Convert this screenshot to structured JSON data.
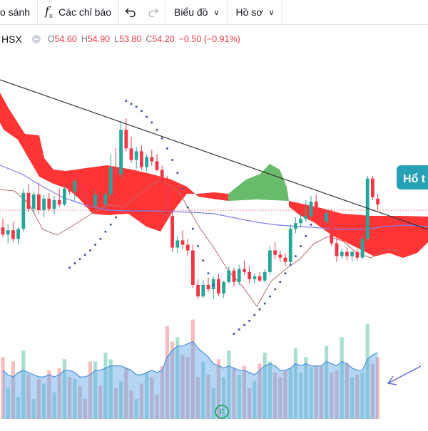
{
  "toolbar": {
    "compare_label": "o sánh",
    "indicators_label": "Các chỉ báo",
    "chart_menu_label": "Biểu đồ",
    "profile_menu_label": "Hồ sơ"
  },
  "legend": {
    "symbol": "HSX",
    "open_label": "O",
    "open": "54.60",
    "high_label": "H",
    "high": "54.90",
    "low_label": "L",
    "low": "53.80",
    "close_label": "C",
    "close": "54.20",
    "change": "−0.50 (−0.91%)"
  },
  "annotation": {
    "label": "Hổ t"
  },
  "marker": {
    "label": "F"
  },
  "colors": {
    "up": "#26a69a",
    "down": "#f23645",
    "cloud_bear": "#ff2a2a",
    "cloud_bull": "#4caf50",
    "psar": "#3f51b5",
    "ma": "#7e7ef0",
    "kijun": "#b86a6a",
    "trend": "#333333"
  },
  "chart_data": {
    "type": "candlestick",
    "price_line": 53.8,
    "candles": [
      [
        52.6,
        53.2,
        51.9,
        52.1
      ],
      [
        52.1,
        52.8,
        51.5,
        52.4
      ],
      [
        52.4,
        53.0,
        51.6,
        51.8
      ],
      [
        51.8,
        52.6,
        51.4,
        52.5
      ],
      [
        52.5,
        55.3,
        52.3,
        55.0
      ],
      [
        55.0,
        55.6,
        53.7,
        53.9
      ],
      [
        53.9,
        55.1,
        53.6,
        54.9
      ],
      [
        54.9,
        55.7,
        53.6,
        53.8
      ],
      [
        53.8,
        54.9,
        53.3,
        54.6
      ],
      [
        54.6,
        55.0,
        53.7,
        53.9
      ],
      [
        53.9,
        54.8,
        53.5,
        54.5
      ],
      [
        54.5,
        55.3,
        54.0,
        54.2
      ],
      [
        54.2,
        55.5,
        54.1,
        55.3
      ],
      [
        55.3,
        56.5,
        54.9,
        55.1
      ],
      [
        55.1,
        56.0,
        54.4,
        55.8
      ],
      [
        55.8,
        56.4,
        55.1,
        55.4
      ],
      [
        55.4,
        55.9,
        54.0,
        54.3
      ],
      [
        54.3,
        54.7,
        53.7,
        54.1
      ],
      [
        54.1,
        55.2,
        53.9,
        54.9
      ],
      [
        54.9,
        55.3,
        54.0,
        54.2
      ],
      [
        54.2,
        55.1,
        53.8,
        54.9
      ],
      [
        54.9,
        57.7,
        54.7,
        56.8
      ],
      [
        56.8,
        58.1,
        56.1,
        56.3
      ],
      [
        56.3,
        60.0,
        56.0,
        59.4
      ],
      [
        59.4,
        60.2,
        57.9,
        58.1
      ],
      [
        58.1,
        58.9,
        57.1,
        57.3
      ],
      [
        57.3,
        58.2,
        56.7,
        57.9
      ],
      [
        57.9,
        58.3,
        56.6,
        56.8
      ],
      [
        56.8,
        57.7,
        56.5,
        57.5
      ],
      [
        57.5,
        58.0,
        56.9,
        57.2
      ],
      [
        57.2,
        57.7,
        56.5,
        56.6
      ],
      [
        56.6,
        56.9,
        55.4,
        55.6
      ],
      [
        55.6,
        56.2,
        53.1,
        53.4
      ],
      [
        53.4,
        53.9,
        50.9,
        51.2
      ],
      [
        51.2,
        52.0,
        50.8,
        51.7
      ],
      [
        51.7,
        52.4,
        51.1,
        51.4
      ],
      [
        51.4,
        51.8,
        50.6,
        51.0
      ],
      [
        51.0,
        51.4,
        48.4,
        48.6
      ],
      [
        48.6,
        49.0,
        47.6,
        47.8
      ],
      [
        47.8,
        48.9,
        47.7,
        48.6
      ],
      [
        48.6,
        49.1,
        48.1,
        48.3
      ],
      [
        48.3,
        49.2,
        47.6,
        49.0
      ],
      [
        49.0,
        49.4,
        47.8,
        48.0
      ],
      [
        48.0,
        48.9,
        47.7,
        48.8
      ],
      [
        48.8,
        49.9,
        48.7,
        49.6
      ],
      [
        49.6,
        49.8,
        48.5,
        48.8
      ],
      [
        48.8,
        50.0,
        48.6,
        49.7
      ],
      [
        49.7,
        50.3,
        49.3,
        49.5
      ],
      [
        49.5,
        49.9,
        48.7,
        49.0
      ],
      [
        49.0,
        49.4,
        48.7,
        49.2
      ],
      [
        49.2,
        49.5,
        48.8,
        48.9
      ],
      [
        48.9,
        49.7,
        48.8,
        49.5
      ],
      [
        49.5,
        51.3,
        49.3,
        51.0
      ],
      [
        51.0,
        51.6,
        50.4,
        50.7
      ],
      [
        50.7,
        51.0,
        50.2,
        50.5
      ],
      [
        50.5,
        50.8,
        49.9,
        50.2
      ],
      [
        50.2,
        52.8,
        50.0,
        52.5
      ],
      [
        52.5,
        53.3,
        52.2,
        52.9
      ],
      [
        52.9,
        53.6,
        52.6,
        53.2
      ],
      [
        53.2,
        54.5,
        53.0,
        53.4
      ],
      [
        53.4,
        54.8,
        53.2,
        54.4
      ],
      [
        54.4,
        54.9,
        53.2,
        53.5
      ],
      [
        53.5,
        53.9,
        52.7,
        53.0
      ],
      [
        53.0,
        53.8,
        52.8,
        53.6
      ],
      [
        53.6,
        53.9,
        51.3,
        51.5
      ],
      [
        51.5,
        51.9,
        50.2,
        50.6
      ],
      [
        50.6,
        51.1,
        50.4,
        50.9
      ],
      [
        50.9,
        51.2,
        50.3,
        50.6
      ],
      [
        50.6,
        51.0,
        50.2,
        50.9
      ],
      [
        50.9,
        51.1,
        50.3,
        50.5
      ],
      [
        50.5,
        52.1,
        50.4,
        51.8
      ],
      [
        51.8,
        56.2,
        51.6,
        56.0
      ],
      [
        56.0,
        56.2,
        54.5,
        54.7
      ],
      [
        54.6,
        54.9,
        53.8,
        54.2
      ]
    ],
    "volume": [
      28,
      14,
      26,
      10,
      31,
      20,
      9,
      18,
      16,
      22,
      12,
      23,
      27,
      19,
      18,
      15,
      9,
      26,
      26,
      15,
      30,
      27,
      14,
      17,
      23,
      13,
      9,
      16,
      21,
      19,
      11,
      24,
      42,
      35,
      37,
      29,
      28,
      45,
      19,
      26,
      20,
      14,
      27,
      19,
      31,
      23,
      20,
      24,
      14,
      17,
      25,
      30,
      26,
      21,
      19,
      22,
      23,
      32,
      21,
      28,
      23,
      24,
      24,
      33,
      21,
      22,
      37,
      25,
      19,
      20,
      21,
      43,
      25,
      28
    ],
    "volume_ma": [
      22,
      20,
      19,
      21,
      22,
      21,
      20,
      19,
      19,
      20,
      19,
      20,
      22,
      22,
      21,
      19,
      19,
      20,
      22,
      22,
      23,
      24,
      24,
      24,
      23,
      22,
      20,
      20,
      21,
      22,
      21,
      22,
      28,
      31,
      33,
      33,
      34,
      35,
      32,
      30,
      28,
      25,
      24,
      23,
      24,
      23,
      22,
      22,
      21,
      20,
      22,
      24,
      25,
      24,
      22,
      22,
      23,
      25,
      24,
      25,
      24,
      24,
      24,
      26,
      25,
      24,
      26,
      25,
      23,
      22,
      22,
      27,
      29,
      30
    ],
    "psar": [
      null,
      null,
      null,
      null,
      null,
      null,
      null,
      null,
      null,
      null,
      null,
      null,
      null,
      49.8,
      50.1,
      50.4,
      50.7,
      51.0,
      51.4,
      51.8,
      52.3,
      52.8,
      53.3,
      null,
      61.4,
      61.2,
      61.0,
      60.7,
      60.3,
      59.9,
      59.4,
      58.8,
      58.1,
      57.3,
      56.4,
      55.3,
      54.0,
      52.5,
      51.3,
      50.3,
      49.4,
      48.6,
      null,
      null,
      null,
      45.2,
      45.5,
      45.8,
      46.1,
      46.5,
      46.9,
      47.3,
      47.8,
      48.3,
      48.8,
      49.4,
      50.0,
      50.6,
      51.3,
      52.0,
      52.8,
      null,
      null,
      null,
      null,
      null,
      null,
      null,
      null,
      null,
      null,
      null,
      null,
      null
    ]
  }
}
